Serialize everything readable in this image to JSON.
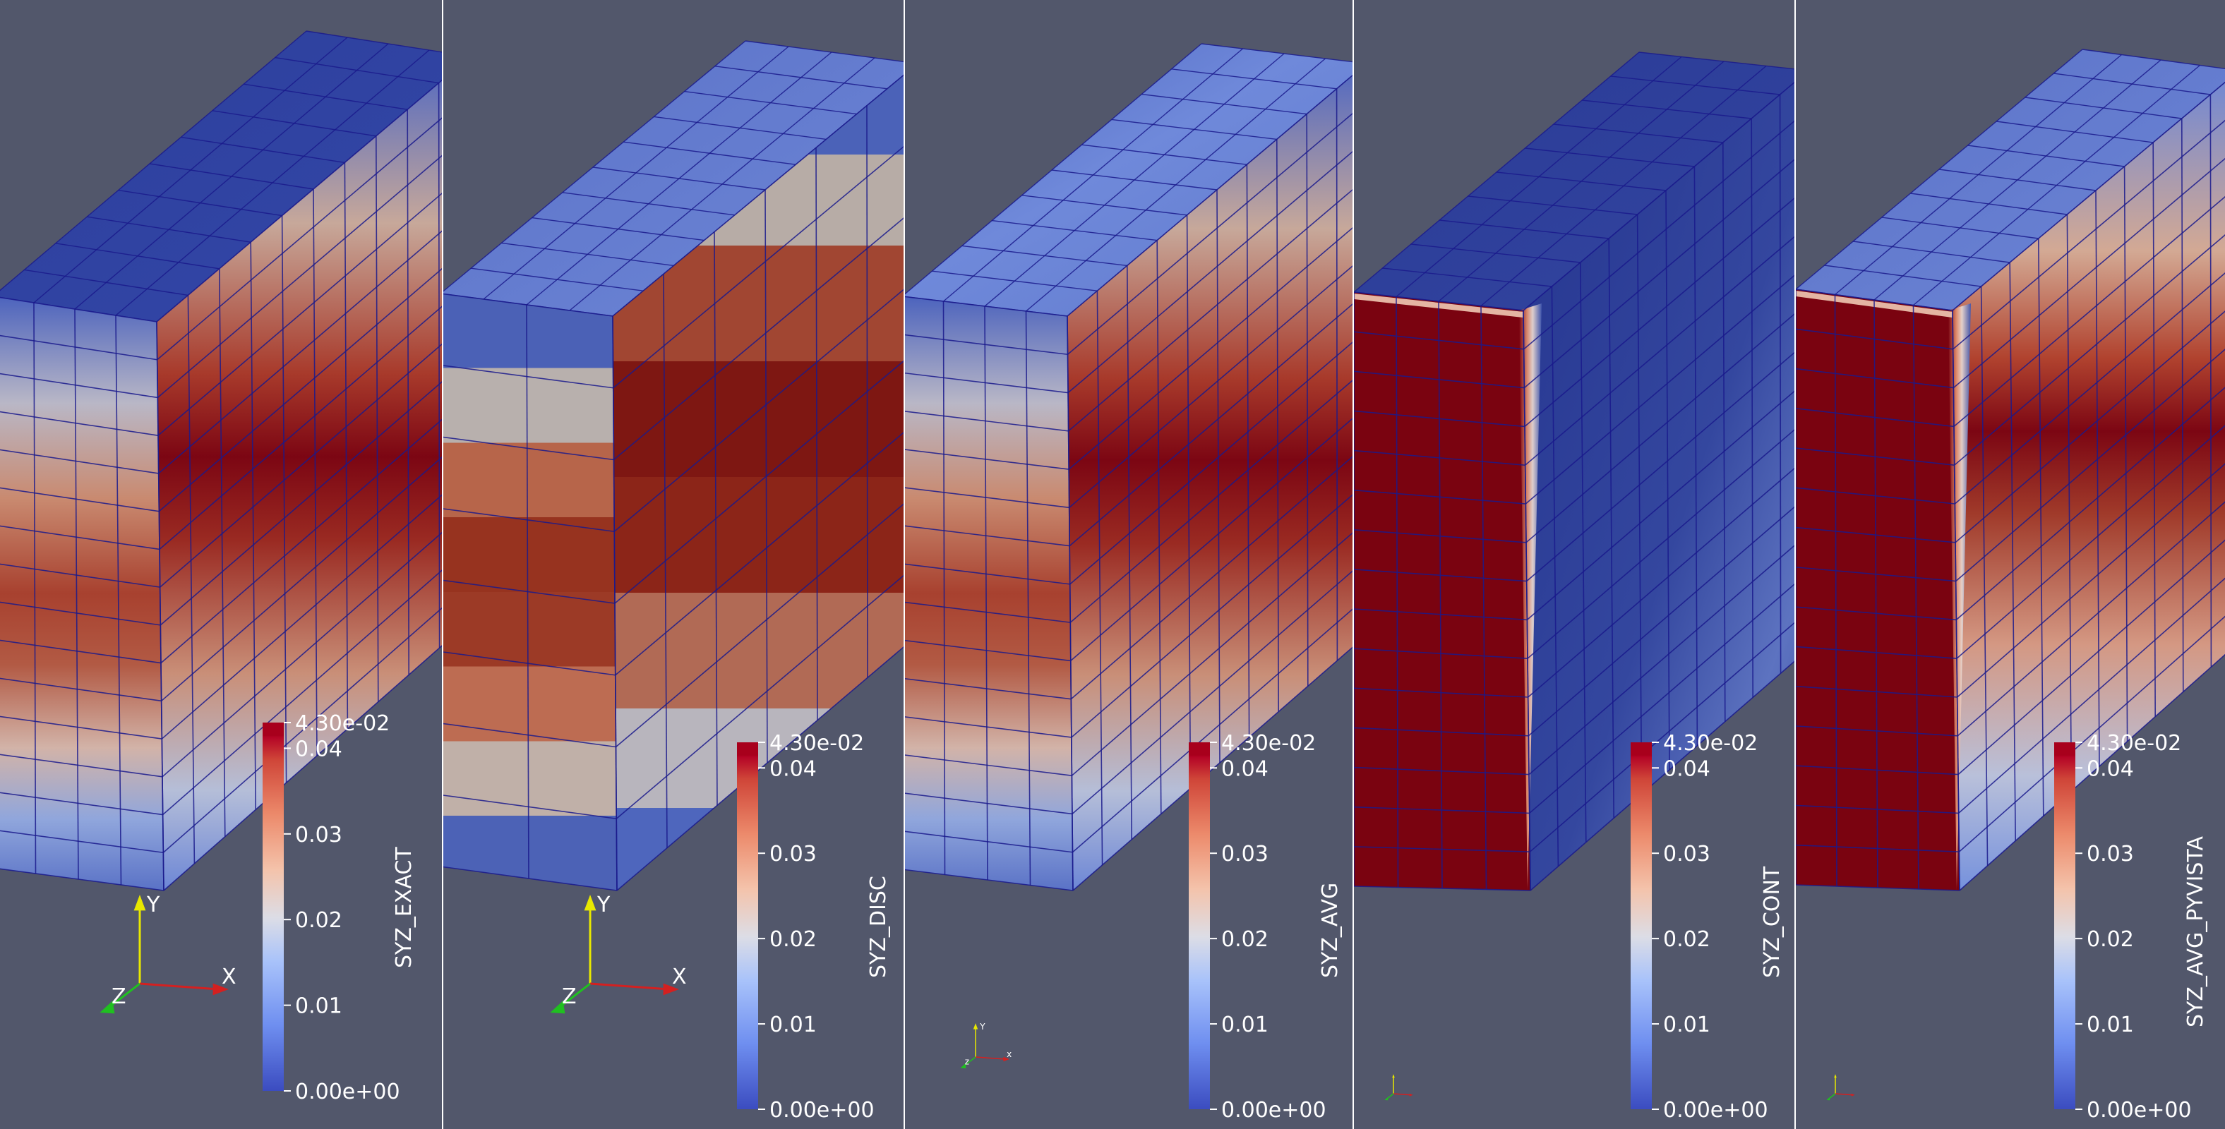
{
  "background_color": "#52576b",
  "divider_color": "#ffffff",
  "mesh_line_color": "#1a1a8c",
  "colormap": {
    "name": "cool-to-warm",
    "stops": [
      "#3b4cc0",
      "#7b9ff9",
      "#c0d4f5",
      "#f2cbb7",
      "#ee8468",
      "#b40426",
      "#7a0310"
    ],
    "range": [
      0.0,
      0.043
    ]
  },
  "panels": [
    {
      "id": "exact",
      "field_name": "SYZ_EXACT",
      "colorbar": {
        "top_label": "4.30e-02",
        "bottom_label": "0.00e+00",
        "ticks": [
          "0.04",
          "0.03",
          "0.02",
          "0.01"
        ],
        "ticks_values": [
          0.04,
          0.03,
          0.02,
          0.01
        ]
      },
      "axes": {
        "x": "X",
        "y": "Y",
        "z": "Z",
        "size": "large"
      }
    },
    {
      "id": "disc",
      "field_name": "SYZ_DISC",
      "colorbar": {
        "top_label": "4.30e-02",
        "bottom_label": "0.00e+00",
        "ticks": [
          "0.04",
          "0.03",
          "0.02",
          "0.01"
        ],
        "ticks_values": [
          0.04,
          0.03,
          0.02,
          0.01
        ]
      },
      "axes": {
        "x": "X",
        "y": "Y",
        "z": "Z",
        "size": "large"
      }
    },
    {
      "id": "avg",
      "field_name": "SYZ_AVG",
      "colorbar": {
        "top_label": "4.30e-02",
        "bottom_label": "0.00e+00",
        "ticks": [
          "0.04",
          "0.03",
          "0.02",
          "0.01"
        ],
        "ticks_values": [
          0.04,
          0.03,
          0.02,
          0.01
        ]
      },
      "axes": {
        "x": "x",
        "y": "Y",
        "z": "z",
        "size": "small"
      }
    },
    {
      "id": "cont",
      "field_name": "SYZ_CONT",
      "colorbar": {
        "top_label": "4.30e-02",
        "bottom_label": "0.00e+00",
        "ticks": [
          "0.04",
          "0.03",
          "0.02",
          "0.01"
        ],
        "ticks_values": [
          0.04,
          0.03,
          0.02,
          0.01
        ]
      },
      "axes": {
        "size": "tiny"
      }
    },
    {
      "id": "avg-pyvista",
      "field_name": "SYZ_AVG_PYVISTA",
      "colorbar": {
        "top_label": "4.30e-02",
        "bottom_label": "0.00e+00",
        "ticks": [
          "0.04",
          "0.03",
          "0.02",
          "0.01"
        ],
        "ticks_values": [
          0.04,
          0.03,
          0.02,
          0.01
        ]
      },
      "axes": {
        "size": "tiny"
      }
    }
  ]
}
